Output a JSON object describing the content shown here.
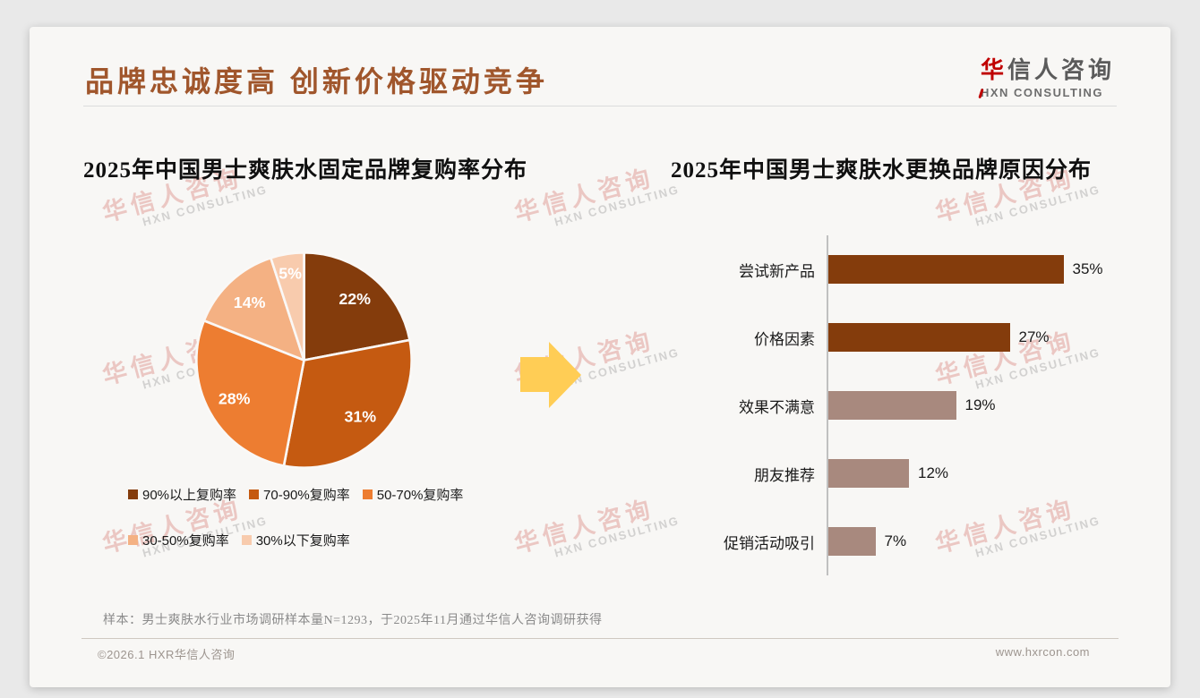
{
  "header": {
    "title": "品牌忠诚度高 创新价格驱动竞争"
  },
  "logo": {
    "cn_accent": "华",
    "cn_rest": "信人咨询",
    "en": "HXN CONSULTING",
    "accent_color": "#C00000"
  },
  "watermark": {
    "cn": "华信人咨询",
    "en": "HXN CONSULTING"
  },
  "chart_data": [
    {
      "type": "pie",
      "title": "2025年中国男士爽肤水固定品牌复购率分布",
      "categories": [
        "90%以上复购率",
        "70-90%复购率",
        "50-70%复购率",
        "30-50%复购率",
        "30%以下复购率"
      ],
      "values": [
        22,
        31,
        28,
        14,
        5
      ],
      "labels": [
        "22%",
        "31%",
        "28%",
        "14%",
        "5%"
      ],
      "colors": [
        "#843C0C",
        "#C55A11",
        "#ED7D31",
        "#F4B183",
        "#F8CBAD"
      ],
      "start_angle": "12-oclock",
      "direction": "clockwise",
      "legend_position": "bottom",
      "label_color": "#FFFFFF"
    },
    {
      "type": "bar",
      "orientation": "horizontal",
      "title": "2025年中国男士爽肤水更换品牌原因分布",
      "categories": [
        "尝试新产品",
        "价格因素",
        "效果不满意",
        "朋友推荐",
        "促销活动吸引"
      ],
      "values": [
        35,
        27,
        19,
        12,
        7
      ],
      "value_labels": [
        "35%",
        "27%",
        "19%",
        "12%",
        "7%"
      ],
      "colors": [
        "#843C0C",
        "#843C0C",
        "#A8897E",
        "#A8897E",
        "#A8897E"
      ],
      "xlim": [
        0,
        40
      ],
      "grid": false,
      "axis_color": "#C0C0C0"
    }
  ],
  "arrow": {
    "color": "#FFCD55"
  },
  "footnote": "样本：男士爽肤水行业市场调研样本量N=1293，于2025年11月通过华信人咨询调研获得",
  "footer": {
    "copyright": "©2026.1 HXR华信人咨询",
    "website": "www.hxrcon.com"
  }
}
